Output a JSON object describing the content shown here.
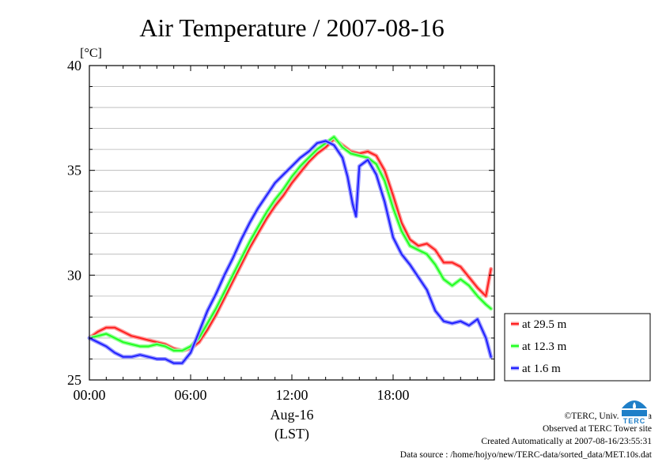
{
  "chart_data": {
    "type": "line",
    "title": "Air Temperature / 2007-08-16",
    "yunit": "[°C]",
    "ylim": [
      25,
      40
    ],
    "yticks": [
      "25",
      "30",
      "35",
      "40"
    ],
    "xlim": [
      0,
      24
    ],
    "xticks": [
      {
        "value": 0,
        "label": "00:00"
      },
      {
        "value": 6,
        "label": "06:00"
      },
      {
        "value": 12,
        "label": "12:00"
      },
      {
        "value": 18,
        "label": "18:00"
      }
    ],
    "xdate": "Aug-16",
    "xlabel": "(LST)",
    "grid": "horizontal, every 1",
    "legend_position": "lower-right outside",
    "series": [
      {
        "name": "at 29.5 m",
        "color": "#ff2020",
        "x": [
          0,
          0.5,
          1,
          1.5,
          2,
          2.5,
          3,
          3.5,
          4,
          4.5,
          5,
          5.5,
          6,
          6.5,
          7,
          7.5,
          8,
          8.5,
          9,
          9.5,
          10,
          10.5,
          11,
          11.5,
          12,
          12.5,
          13,
          13.5,
          14,
          14.5,
          15,
          15.5,
          16,
          16.5,
          17,
          17.5,
          18,
          18.5,
          19,
          19.5,
          20,
          20.5,
          21,
          21.5,
          22,
          22.5,
          23,
          23.5,
          23.8
        ],
        "values": [
          27.0,
          27.3,
          27.5,
          27.5,
          27.3,
          27.1,
          27.0,
          26.9,
          26.8,
          26.7,
          26.5,
          26.4,
          26.5,
          26.8,
          27.4,
          28.1,
          28.9,
          29.7,
          30.5,
          31.3,
          32.0,
          32.7,
          33.3,
          33.8,
          34.4,
          34.9,
          35.4,
          35.8,
          36.1,
          36.5,
          36.2,
          35.9,
          35.8,
          35.9,
          35.7,
          35.0,
          33.8,
          32.5,
          31.7,
          31.4,
          31.5,
          31.2,
          30.6,
          30.6,
          30.4,
          29.9,
          29.4,
          29.0,
          30.3
        ]
      },
      {
        "name": "at 12.3 m",
        "color": "#20ff20",
        "x": [
          0,
          0.5,
          1,
          1.5,
          2,
          2.5,
          3,
          3.5,
          4,
          4.5,
          5,
          5.5,
          6,
          6.5,
          7,
          7.5,
          8,
          8.5,
          9,
          9.5,
          10,
          10.5,
          11,
          11.5,
          12,
          12.5,
          13,
          13.5,
          14,
          14.5,
          15,
          15.5,
          16,
          16.5,
          17,
          17.5,
          18,
          18.5,
          19,
          19.5,
          20,
          20.5,
          21,
          21.5,
          22,
          22.5,
          23,
          23.5,
          23.8
        ],
        "values": [
          27.0,
          27.1,
          27.2,
          27.0,
          26.8,
          26.7,
          26.6,
          26.6,
          26.7,
          26.6,
          26.4,
          26.4,
          26.6,
          27.0,
          27.7,
          28.4,
          29.2,
          30.0,
          30.8,
          31.6,
          32.3,
          33.0,
          33.6,
          34.1,
          34.7,
          35.2,
          35.6,
          36.0,
          36.3,
          36.6,
          36.1,
          35.8,
          35.7,
          35.6,
          35.3,
          34.5,
          33.2,
          32.1,
          31.4,
          31.2,
          31.0,
          30.5,
          29.8,
          29.5,
          29.8,
          29.5,
          29.0,
          28.6,
          28.4
        ]
      },
      {
        "name": "at 1.6 m",
        "color": "#2020ff",
        "x": [
          0,
          0.5,
          1,
          1.5,
          2,
          2.5,
          3,
          3.5,
          4,
          4.5,
          5,
          5.5,
          6,
          6.5,
          7,
          7.5,
          8,
          8.5,
          9,
          9.5,
          10,
          10.5,
          11,
          11.5,
          12,
          12.5,
          13,
          13.5,
          14,
          14.5,
          15,
          15.3,
          15.6,
          15.8,
          16,
          16.5,
          17,
          17.5,
          18,
          18.5,
          19,
          19.5,
          20,
          20.5,
          21,
          21.5,
          22,
          22.5,
          23,
          23.5,
          23.8
        ],
        "values": [
          27.0,
          26.8,
          26.6,
          26.3,
          26.1,
          26.1,
          26.2,
          26.1,
          26.0,
          26.0,
          25.8,
          25.8,
          26.3,
          27.3,
          28.3,
          29.1,
          30.0,
          30.8,
          31.7,
          32.5,
          33.2,
          33.8,
          34.4,
          34.8,
          35.2,
          35.6,
          35.9,
          36.3,
          36.4,
          36.2,
          35.6,
          34.7,
          33.4,
          32.8,
          35.2,
          35.5,
          34.8,
          33.5,
          31.8,
          31.0,
          30.5,
          29.9,
          29.3,
          28.3,
          27.8,
          27.7,
          27.8,
          27.6,
          27.9,
          27.0,
          26.1
        ]
      }
    ]
  },
  "footer": {
    "line1": "©TERC, Univ. Tsukuba",
    "line2": "Observed at TERC Tower site",
    "line3": "Created Automatically at 2007-08-16/23:55:31",
    "line4": "Data source : /home/hojyo/new/TERC-data/sorted_data/MET.10s.dat"
  },
  "logo": {
    "text": "TERC",
    "color": "#1f7fc8"
  }
}
